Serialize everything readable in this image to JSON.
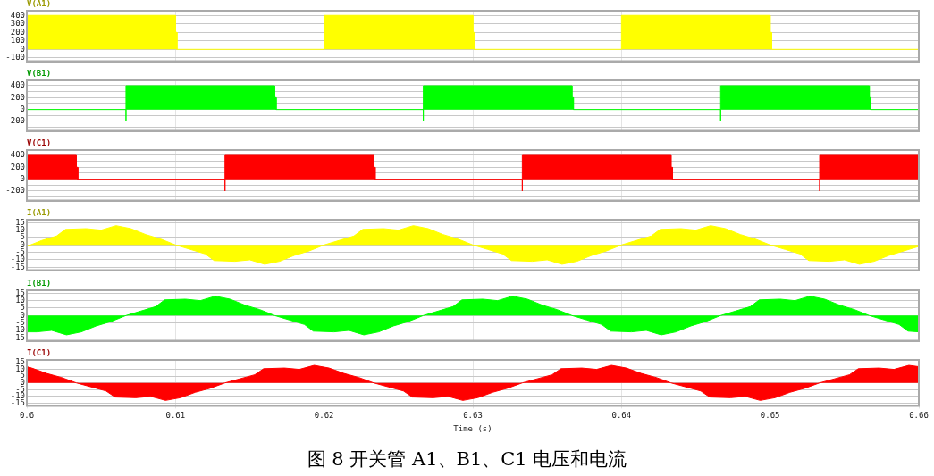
{
  "chart_data": [
    {
      "type": "area",
      "title": "V(A1)",
      "xlim": [
        0.6,
        0.66
      ],
      "xticks": [
        0.6,
        0.61,
        0.62,
        0.63,
        0.64,
        0.65,
        0.66
      ],
      "ylim": [
        -140,
        455
      ],
      "yticks": [
        400,
        300,
        200,
        100,
        0,
        -100
      ],
      "grid": true,
      "legend": false,
      "tick_labels": "y",
      "series": [
        {
          "color": "#ffff00",
          "x": [
            0.6,
            0.61,
            0.61,
            0.6101,
            0.6101,
            0.62,
            0.62,
            0.63,
            0.63,
            0.6301,
            0.6301,
            0.64,
            0.64,
            0.65,
            0.65,
            0.6501,
            0.6501,
            0.66
          ],
          "values": [
            400,
            400,
            200,
            200,
            0,
            0,
            400,
            400,
            200,
            200,
            0,
            0,
            400,
            400,
            200,
            200,
            0,
            0
          ]
        }
      ]
    },
    {
      "type": "area",
      "title": "V(B1)",
      "xlim": [
        0.6,
        0.66
      ],
      "xticks": [
        0.6,
        0.61,
        0.62,
        0.63,
        0.64,
        0.65,
        0.66
      ],
      "ylim": [
        -360,
        490
      ],
      "yticks": [
        400,
        {
          "value": 300,
          "label": null
        },
        200,
        {
          "value": 100,
          "label": null
        },
        0,
        {
          "value": -100,
          "label": null
        },
        -200,
        {
          "value": -300,
          "label": null
        }
      ],
      "grid": true,
      "legend": false,
      "tick_labels": "y",
      "series": [
        {
          "color": "#00ff00",
          "x": [
            0.6,
            0.60667,
            0.60667,
            0.60667,
            0.60667,
            0.61667,
            0.61667,
            0.61677,
            0.61677,
            0.62667,
            0.62667,
            0.62667,
            0.62667,
            0.63667,
            0.63667,
            0.63677,
            0.63677,
            0.64667,
            0.64667,
            0.64667,
            0.64667,
            0.65667,
            0.65667,
            0.65677,
            0.65677,
            0.66
          ],
          "values": [
            0,
            0,
            -200,
            0,
            400,
            400,
            200,
            200,
            0,
            0,
            -200,
            0,
            400,
            400,
            200,
            200,
            0,
            0,
            -200,
            0,
            400,
            400,
            200,
            200,
            0,
            0
          ]
        }
      ]
    },
    {
      "type": "area",
      "title": "V(C1)",
      "xlim": [
        0.6,
        0.66
      ],
      "xticks": [
        0.6,
        0.61,
        0.62,
        0.63,
        0.64,
        0.65,
        0.66
      ],
      "ylim": [
        -360,
        490
      ],
      "yticks": [
        400,
        {
          "value": 300,
          "label": null
        },
        200,
        {
          "value": 100,
          "label": null
        },
        0,
        {
          "value": -100,
          "label": null
        },
        -200,
        {
          "value": -300,
          "label": null
        }
      ],
      "grid": true,
      "legend": false,
      "tick_labels": "y",
      "series": [
        {
          "color": "#ff0000",
          "x": [
            0.6,
            0.60333,
            0.60333,
            0.60343,
            0.60343,
            0.61333,
            0.61333,
            0.61333,
            0.61333,
            0.62333,
            0.62333,
            0.62343,
            0.62343,
            0.63333,
            0.63333,
            0.63333,
            0.63333,
            0.64333,
            0.64333,
            0.64343,
            0.64343,
            0.65333,
            0.65333,
            0.65333,
            0.65333,
            0.66
          ],
          "values": [
            400,
            400,
            200,
            200,
            0,
            0,
            -200,
            0,
            400,
            400,
            200,
            200,
            0,
            0,
            -200,
            0,
            400,
            400,
            200,
            200,
            0,
            0,
            -200,
            0,
            400,
            400
          ]
        }
      ]
    },
    {
      "type": "area",
      "title": "I(A1)",
      "xlim": [
        0.6,
        0.66
      ],
      "xticks": [
        0.6,
        0.61,
        0.62,
        0.63,
        0.64,
        0.65,
        0.66
      ],
      "ylim": [
        -17,
        17
      ],
      "yticks": [
        15,
        10,
        5,
        0,
        -5,
        -10,
        -15
      ],
      "grid": true,
      "legend": false,
      "tick_labels": "y",
      "series": [
        {
          "color": "#ffff00",
          "x": [
            0.6,
            0.601,
            0.602,
            0.6026,
            0.604,
            0.605,
            0.606,
            0.607,
            0.608,
            0.609,
            0.61,
            0.611,
            0.612,
            0.6126,
            0.614,
            0.615,
            0.616,
            0.617,
            0.618,
            0.619,
            0.62,
            0.621,
            0.622,
            0.6226,
            0.624,
            0.625,
            0.626,
            0.627,
            0.628,
            0.629,
            0.63,
            0.631,
            0.632,
            0.6326,
            0.634,
            0.635,
            0.636,
            0.637,
            0.638,
            0.639,
            0.64,
            0.641,
            0.642,
            0.6426,
            0.644,
            0.645,
            0.646,
            0.647,
            0.648,
            0.649,
            0.65,
            0.651,
            0.652,
            0.6526,
            0.654,
            0.655,
            0.656,
            0.657,
            0.658,
            0.659,
            0.66
          ],
          "values": [
            -1,
            3,
            6,
            10.5,
            11,
            10,
            13,
            11,
            7,
            4,
            0,
            -3,
            -6,
            -10.5,
            -11,
            -10,
            -13,
            -11,
            -7,
            -4,
            0,
            3,
            6,
            10.5,
            11,
            10,
            13,
            11,
            7,
            4,
            0,
            -3,
            -6,
            -10.5,
            -11,
            -10,
            -13,
            -11,
            -7,
            -4,
            0,
            3,
            6,
            10.5,
            11,
            10,
            13,
            11,
            7,
            4,
            0,
            -3,
            -6,
            -10.5,
            -11,
            -10,
            -13,
            -11,
            -7,
            -4,
            -1
          ]
        }
      ]
    },
    {
      "type": "area",
      "title": "I(B1)",
      "xlim": [
        0.6,
        0.66
      ],
      "xticks": [
        0.6,
        0.61,
        0.62,
        0.63,
        0.64,
        0.65,
        0.66
      ],
      "ylim": [
        -17,
        17
      ],
      "yticks": [
        15,
        10,
        5,
        0,
        -5,
        -10,
        -15
      ],
      "grid": true,
      "legend": false,
      "tick_labels": "y",
      "series": [
        {
          "color": "#00ff00",
          "x": [
            0.6,
            0.60067,
            0.60167,
            0.60267,
            0.60367,
            0.60467,
            0.60567,
            0.60667,
            0.60767,
            0.60867,
            0.60927,
            0.61067,
            0.61167,
            0.61267,
            0.61367,
            0.61467,
            0.61567,
            0.61667,
            0.61767,
            0.61867,
            0.61927,
            0.62067,
            0.62167,
            0.62267,
            0.62367,
            0.62467,
            0.62567,
            0.62667,
            0.62767,
            0.62867,
            0.62927,
            0.63067,
            0.63167,
            0.63267,
            0.63367,
            0.63467,
            0.63567,
            0.63667,
            0.63767,
            0.63867,
            0.63927,
            0.64067,
            0.64167,
            0.64267,
            0.64367,
            0.64467,
            0.64567,
            0.64667,
            0.64767,
            0.64867,
            0.64927,
            0.65067,
            0.65167,
            0.65267,
            0.65367,
            0.65467,
            0.65567,
            0.65667,
            0.65767,
            0.65867,
            0.65927,
            0.66
          ],
          "values": [
            -11,
            -11,
            -10,
            -13,
            -11,
            -7,
            -4,
            0,
            3,
            6,
            10.5,
            11,
            10,
            13,
            11,
            7,
            4,
            0,
            -3,
            -6,
            -10.5,
            -11,
            -10,
            -13,
            -11,
            -7,
            -4,
            0,
            3,
            6,
            10.5,
            11,
            10,
            13,
            11,
            7,
            4,
            0,
            -3,
            -6,
            -10.5,
            -11,
            -10,
            -13,
            -11,
            -7,
            -4,
            0,
            3,
            6,
            10.5,
            11,
            10,
            13,
            11,
            7,
            4,
            0,
            -3,
            -6,
            -10.5,
            -11
          ]
        }
      ]
    },
    {
      "type": "area",
      "title": "I(C1)",
      "xlabel": "Time (s)",
      "xlim": [
        0.6,
        0.66
      ],
      "xticks": [
        0.6,
        0.61,
        0.62,
        0.63,
        0.64,
        0.65,
        0.66
      ],
      "ylim": [
        -17,
        17
      ],
      "yticks": [
        15,
        10,
        5,
        0,
        -5,
        -10,
        -15
      ],
      "grid": true,
      "legend": false,
      "annotations": [
        "图 8  开关管 A1、B1、C1 电压和电流"
      ],
      "series": [
        {
          "color": "#ff0000",
          "x": [
            0.6,
            0.60033,
            0.60133,
            0.60233,
            0.60333,
            0.60433,
            0.60533,
            0.60593,
            0.60733,
            0.60833,
            0.60933,
            0.61033,
            0.61133,
            0.61233,
            0.61333,
            0.61433,
            0.61533,
            0.61593,
            0.61733,
            0.61833,
            0.61933,
            0.62033,
            0.62133,
            0.62233,
            0.62333,
            0.62433,
            0.62533,
            0.62593,
            0.62733,
            0.62833,
            0.62933,
            0.63033,
            0.63133,
            0.63233,
            0.63333,
            0.63433,
            0.63533,
            0.63593,
            0.63733,
            0.63833,
            0.63933,
            0.64033,
            0.64133,
            0.64233,
            0.64333,
            0.64433,
            0.64533,
            0.64593,
            0.64733,
            0.64833,
            0.64933,
            0.65033,
            0.65133,
            0.65233,
            0.65333,
            0.65433,
            0.65533,
            0.65593,
            0.65733,
            0.65833,
            0.65933,
            0.66
          ],
          "values": [
            12,
            11,
            7,
            4,
            0,
            -3,
            -6,
            -10.5,
            -11,
            -10,
            -13,
            -11,
            -7,
            -4,
            0,
            3,
            6,
            10.5,
            11,
            10,
            13,
            11,
            7,
            4,
            0,
            -3,
            -6,
            -10.5,
            -11,
            -10,
            -13,
            -11,
            -7,
            -4,
            0,
            3,
            6,
            10.5,
            11,
            10,
            13,
            11,
            7,
            4,
            0,
            -3,
            -6,
            -10.5,
            -11,
            -10,
            -13,
            -11,
            -7,
            -4,
            0,
            3,
            6,
            10.5,
            11,
            10,
            13,
            12
          ]
        }
      ]
    }
  ]
}
